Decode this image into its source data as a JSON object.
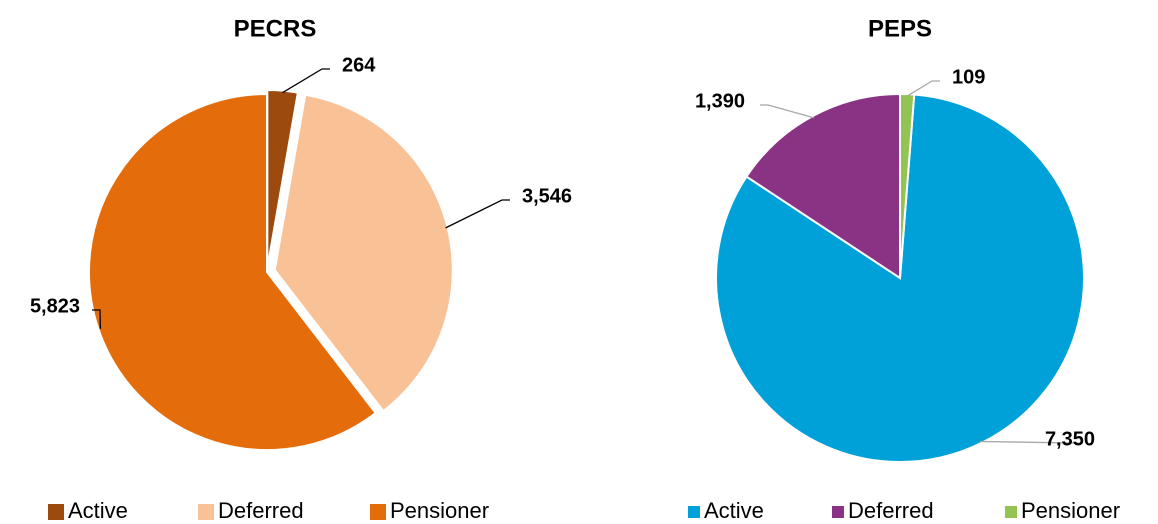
{
  "chart_data": [
    {
      "type": "pie",
      "title": "PECRS",
      "categories": [
        "Active",
        "Deferred",
        "Pensioner"
      ],
      "values": [
        264,
        3546,
        5823
      ],
      "value_labels": [
        "264",
        "3,546",
        "5,823"
      ],
      "colors": [
        "#9c4a0e",
        "#f9c196",
        "#e46c0a"
      ],
      "legend": "bottom"
    },
    {
      "type": "pie",
      "title": "PEPS",
      "categories": [
        "Active",
        "Deferred",
        "Pensioner"
      ],
      "values": [
        7350,
        1390,
        109
      ],
      "value_labels": [
        "7,350",
        "1,390",
        "109"
      ],
      "colors": [
        "#00a0d8",
        "#8a3385",
        "#92c353"
      ],
      "legend": "bottom"
    }
  ]
}
